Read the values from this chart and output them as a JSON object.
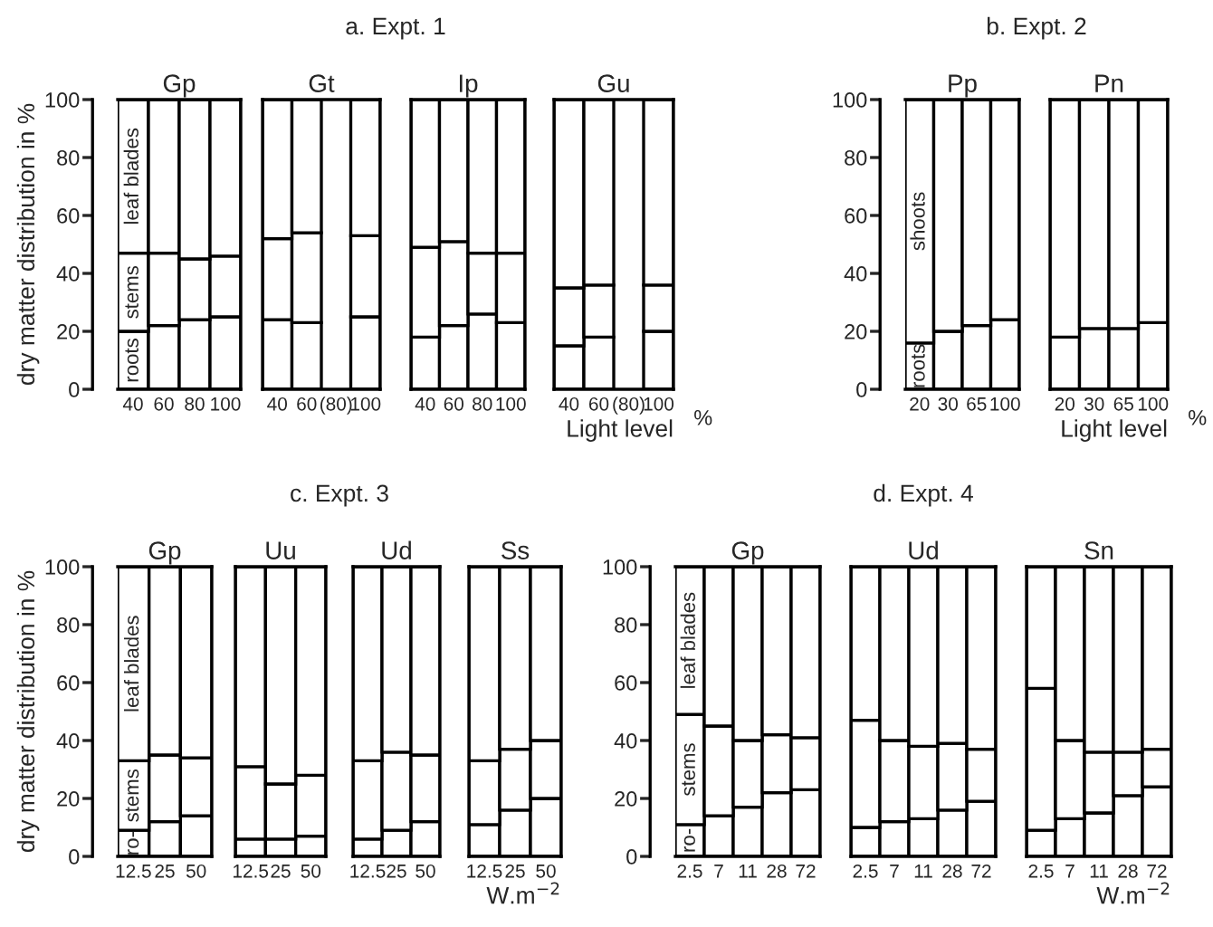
{
  "chart_data": [
    {
      "type": "bar",
      "stacked": true,
      "title": "Gp",
      "ylabel": "dry matter distribution in %",
      "categories": [
        "40",
        "60",
        "80",
        "100"
      ],
      "ylim": [
        0,
        100
      ],
      "yticks": [
        0,
        20,
        40,
        60,
        80,
        100
      ],
      "series": [
        {
          "name": "roots",
          "color": "#ffffff",
          "values": [
            20,
            22,
            24,
            25
          ]
        },
        {
          "name": "stems",
          "color": "#ffffff",
          "values": [
            27,
            25,
            21,
            21
          ]
        },
        {
          "name": "leaf blades",
          "color": "#ffffff",
          "values": [
            53,
            53,
            55,
            54
          ]
        }
      ]
    },
    {
      "type": "bar",
      "stacked": true,
      "subtitle": "a. Expt. 1",
      "title": "Gt",
      "categories": [
        "40",
        "60",
        "(80)",
        "100"
      ],
      "ylim": [
        0,
        100
      ],
      "tick_labels": "x",
      "series": [
        {
          "color": "#ffffff",
          "values": [
            24,
            23,
            null,
            25
          ]
        },
        {
          "color": "#ffffff",
          "values": [
            28,
            31,
            null,
            28
          ]
        },
        {
          "color": "#ffffff",
          "values": [
            48,
            46,
            null,
            47
          ]
        }
      ]
    },
    {
      "type": "bar",
      "stacked": true,
      "title": "Ip",
      "categories": [
        "40",
        "60",
        "80",
        "100"
      ],
      "ylim": [
        0,
        100
      ],
      "tick_labels": "x",
      "series": [
        {
          "color": "#ffffff",
          "values": [
            18,
            22,
            26,
            23
          ]
        },
        {
          "color": "#ffffff",
          "values": [
            31,
            29,
            21,
            24
          ]
        },
        {
          "color": "#ffffff",
          "values": [
            51,
            49,
            53,
            53
          ]
        }
      ]
    },
    {
      "type": "bar",
      "stacked": true,
      "title": "Gu",
      "xlabel": "Light level",
      "annotations": [
        "%"
      ],
      "categories": [
        "40",
        "60",
        "(80)",
        "100"
      ],
      "ylim": [
        0,
        100
      ],
      "tick_labels": "x",
      "series": [
        {
          "color": "#ffffff",
          "values": [
            15,
            18,
            null,
            20
          ]
        },
        {
          "color": "#ffffff",
          "values": [
            20,
            18,
            null,
            16
          ]
        },
        {
          "color": "#ffffff",
          "values": [
            65,
            64,
            null,
            64
          ]
        }
      ]
    },
    {
      "type": "bar",
      "stacked": true,
      "subtitle": "b. Expt. 2",
      "title": "Pp",
      "categories": [
        "20",
        "30",
        "65",
        "100"
      ],
      "ylim": [
        0,
        100
      ],
      "yticks": [
        0,
        20,
        40,
        60,
        80,
        100
      ],
      "series": [
        {
          "name": "roots",
          "color": "#ffffff",
          "values": [
            16,
            20,
            22,
            24
          ]
        },
        {
          "name": "shoots",
          "color": "#ffffff",
          "values": [
            84,
            80,
            78,
            76
          ]
        }
      ]
    },
    {
      "type": "bar",
      "stacked": true,
      "title": "Pn",
      "xlabel": "Light level",
      "annotations": [
        "%"
      ],
      "categories": [
        "20",
        "30",
        "65",
        "100"
      ],
      "ylim": [
        0,
        100
      ],
      "tick_labels": "x",
      "series": [
        {
          "color": "#ffffff",
          "values": [
            18,
            21,
            21,
            23
          ]
        },
        {
          "color": "#ffffff",
          "values": [
            82,
            79,
            79,
            77
          ]
        }
      ]
    },
    {
      "type": "bar",
      "stacked": true,
      "title": "Gp",
      "ylabel": "dry matter distribution in %",
      "categories": [
        "12.5",
        "25",
        "50"
      ],
      "ylim": [
        0,
        100
      ],
      "yticks": [
        0,
        20,
        40,
        60,
        80,
        100
      ],
      "series": [
        {
          "name": "ro-",
          "color": "#ffffff",
          "values": [
            9,
            12,
            14
          ]
        },
        {
          "name": "stems",
          "color": "#ffffff",
          "values": [
            24,
            23,
            20
          ]
        },
        {
          "name": "leaf blades",
          "color": "#ffffff",
          "values": [
            67,
            65,
            66
          ]
        }
      ]
    },
    {
      "type": "bar",
      "stacked": true,
      "subtitle": "c. Expt. 3",
      "title": "Uu",
      "categories": [
        "12.5",
        "25",
        "50"
      ],
      "ylim": [
        0,
        100
      ],
      "tick_labels": "x",
      "series": [
        {
          "color": "#ffffff",
          "values": [
            6,
            6,
            7
          ]
        },
        {
          "color": "#ffffff",
          "values": [
            25,
            19,
            21
          ]
        },
        {
          "color": "#ffffff",
          "values": [
            69,
            75,
            72
          ]
        }
      ]
    },
    {
      "type": "bar",
      "stacked": true,
      "title": "Ud",
      "categories": [
        "12.5",
        "25",
        "50"
      ],
      "ylim": [
        0,
        100
      ],
      "tick_labels": "x",
      "series": [
        {
          "color": "#ffffff",
          "values": [
            6,
            9,
            12
          ]
        },
        {
          "color": "#ffffff",
          "values": [
            27,
            27,
            23
          ]
        },
        {
          "color": "#ffffff",
          "values": [
            67,
            64,
            65
          ]
        }
      ]
    },
    {
      "type": "bar",
      "stacked": true,
      "title": "Ss",
      "xlabel": "W.m$^{−2}$",
      "categories": [
        "12.5",
        "25",
        "50"
      ],
      "ylim": [
        0,
        100
      ],
      "tick_labels": "x",
      "series": [
        {
          "color": "#ffffff",
          "values": [
            11,
            16,
            20
          ]
        },
        {
          "color": "#ffffff",
          "values": [
            22,
            21,
            20
          ]
        },
        {
          "color": "#ffffff",
          "values": [
            67,
            63,
            60
          ]
        }
      ]
    },
    {
      "type": "bar",
      "stacked": true,
      "title": "Gp",
      "categories": [
        "2.5",
        "7",
        "11",
        "28",
        "72"
      ],
      "ylim": [
        0,
        100
      ],
      "yticks": [
        0,
        20,
        40,
        60,
        80,
        100
      ],
      "series": [
        {
          "name": "ro-",
          "color": "#ffffff",
          "values": [
            11,
            14,
            17,
            22,
            23
          ]
        },
        {
          "name": "stems",
          "color": "#ffffff",
          "values": [
            38,
            31,
            23,
            20,
            18
          ]
        },
        {
          "name": "leaf blades",
          "color": "#ffffff",
          "values": [
            51,
            55,
            60,
            58,
            59
          ]
        }
      ]
    },
    {
      "type": "bar",
      "stacked": true,
      "subtitle": "d. Expt. 4",
      "title": "Ud",
      "categories": [
        "2.5",
        "7",
        "11",
        "28",
        "72"
      ],
      "ylim": [
        0,
        100
      ],
      "tick_labels": "x",
      "series": [
        {
          "color": "#ffffff",
          "values": [
            10,
            12,
            13,
            16,
            19
          ]
        },
        {
          "color": "#ffffff",
          "values": [
            37,
            28,
            25,
            23,
            18
          ]
        },
        {
          "color": "#ffffff",
          "values": [
            53,
            60,
            62,
            61,
            63
          ]
        }
      ]
    },
    {
      "type": "bar",
      "stacked": true,
      "title": "Sn",
      "xlabel": "W.m$^{−2}$",
      "categories": [
        "2.5",
        "7",
        "11",
        "28",
        "72"
      ],
      "ylim": [
        0,
        100
      ],
      "tick_labels": "x",
      "series": [
        {
          "color": "#ffffff",
          "values": [
            9,
            13,
            15,
            21,
            24
          ]
        },
        {
          "color": "#ffffff",
          "values": [
            49,
            27,
            21,
            15,
            13
          ]
        },
        {
          "color": "#ffffff",
          "values": [
            42,
            60,
            64,
            64,
            63
          ]
        }
      ]
    }
  ]
}
